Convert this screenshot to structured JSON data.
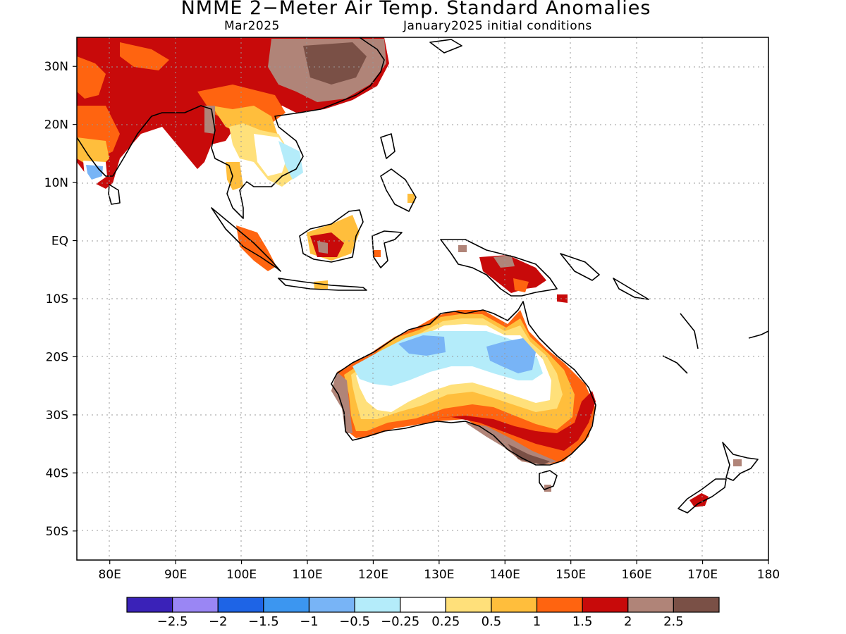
{
  "title": "NMME 2−Meter Air Temp. Standard Anomalies",
  "subtitle_left": "Mar2025",
  "subtitle_right": "January2025 initial conditions",
  "map": {
    "lon_ticks": [
      "80E",
      "90E",
      "100E",
      "110E",
      "120E",
      "130E",
      "140E",
      "150E",
      "160E",
      "170E",
      "180"
    ],
    "lat_ticks": [
      "30N",
      "20N",
      "10N",
      "EQ",
      "10S",
      "20S",
      "30S",
      "40S",
      "50S"
    ],
    "lon_range": [
      75,
      180
    ],
    "lat_range": [
      -55,
      35
    ],
    "grid": "dotted"
  },
  "colorbar": {
    "colors": [
      "#3a22b8",
      "#9a86f4",
      "#1e64e6",
      "#3c96f0",
      "#78b4f6",
      "#b4ecfa",
      "#ffffff",
      "#ffe07a",
      "#ffbe3c",
      "#ff6410",
      "#c80a0a",
      "#b08478",
      "#7a5046"
    ],
    "labels": [
      "−2.5",
      "−2",
      "−1.5",
      "−1",
      "−0.5",
      "−0.25",
      "0.25",
      "0.5",
      "1",
      "1.5",
      "2",
      "2.5"
    ]
  }
}
